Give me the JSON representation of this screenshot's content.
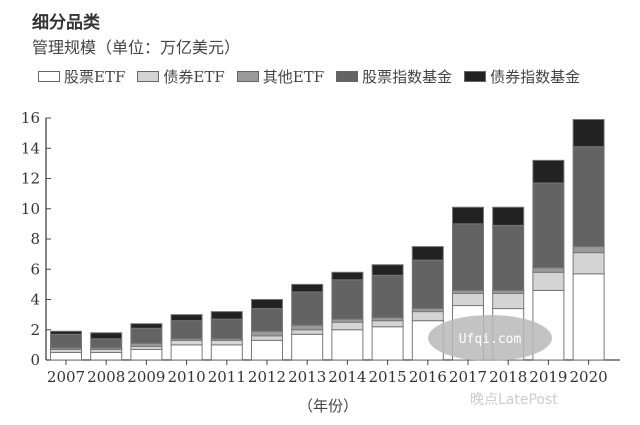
{
  "chart_data": {
    "type": "bar",
    "stacked": true,
    "title": "细分品类",
    "subtitle": "管理规模（单位：万亿美元）",
    "xlabel": "（年份）",
    "ylabel": "管理规模（单位：万亿美元）",
    "ylim": [
      0,
      16
    ],
    "yticks": [
      0,
      2,
      4,
      6,
      8,
      10,
      12,
      14,
      16
    ],
    "grid": false,
    "legend_position": "top",
    "categories": [
      "2007",
      "2008",
      "2009",
      "2010",
      "2011",
      "2012",
      "2013",
      "2014",
      "2015",
      "2016",
      "2017",
      "2018",
      "2019",
      "2020"
    ],
    "series": [
      {
        "name": "股票ETF",
        "color": "#ffffff",
        "values": [
          0.5,
          0.5,
          0.7,
          1.0,
          1.0,
          1.3,
          1.7,
          2.0,
          2.2,
          2.6,
          3.6,
          3.4,
          4.6,
          5.7
        ]
      },
      {
        "name": "债券ETF",
        "color": "#d4d4d4",
        "values": [
          0.2,
          0.2,
          0.2,
          0.3,
          0.3,
          0.3,
          0.3,
          0.5,
          0.4,
          0.6,
          0.8,
          1.0,
          1.2,
          1.4
        ]
      },
      {
        "name": "其他ETF",
        "color": "#9a9a9a",
        "values": [
          0.1,
          0.1,
          0.2,
          0.1,
          0.1,
          0.3,
          0.3,
          0.2,
          0.2,
          0.2,
          0.2,
          0.2,
          0.3,
          0.4
        ]
      },
      {
        "name": "股票指数基金",
        "color": "#636363",
        "values": [
          0.9,
          0.6,
          1.0,
          1.2,
          1.3,
          1.5,
          2.2,
          2.6,
          2.8,
          3.2,
          4.4,
          4.3,
          5.6,
          6.6
        ]
      },
      {
        "name": "债券指数基金",
        "color": "#222222",
        "values": [
          0.2,
          0.4,
          0.3,
          0.4,
          0.5,
          0.6,
          0.5,
          0.5,
          0.7,
          0.9,
          1.1,
          1.2,
          1.5,
          1.8
        ]
      }
    ],
    "totals": [
      1.9,
      1.8,
      2.4,
      3.0,
      3.2,
      4.0,
      5.0,
      5.8,
      6.3,
      7.5,
      10.1,
      10.1,
      13.2,
      15.9
    ]
  },
  "watermark": "晚点LatePost",
  "overlay_watermark": "Ufqi.com"
}
